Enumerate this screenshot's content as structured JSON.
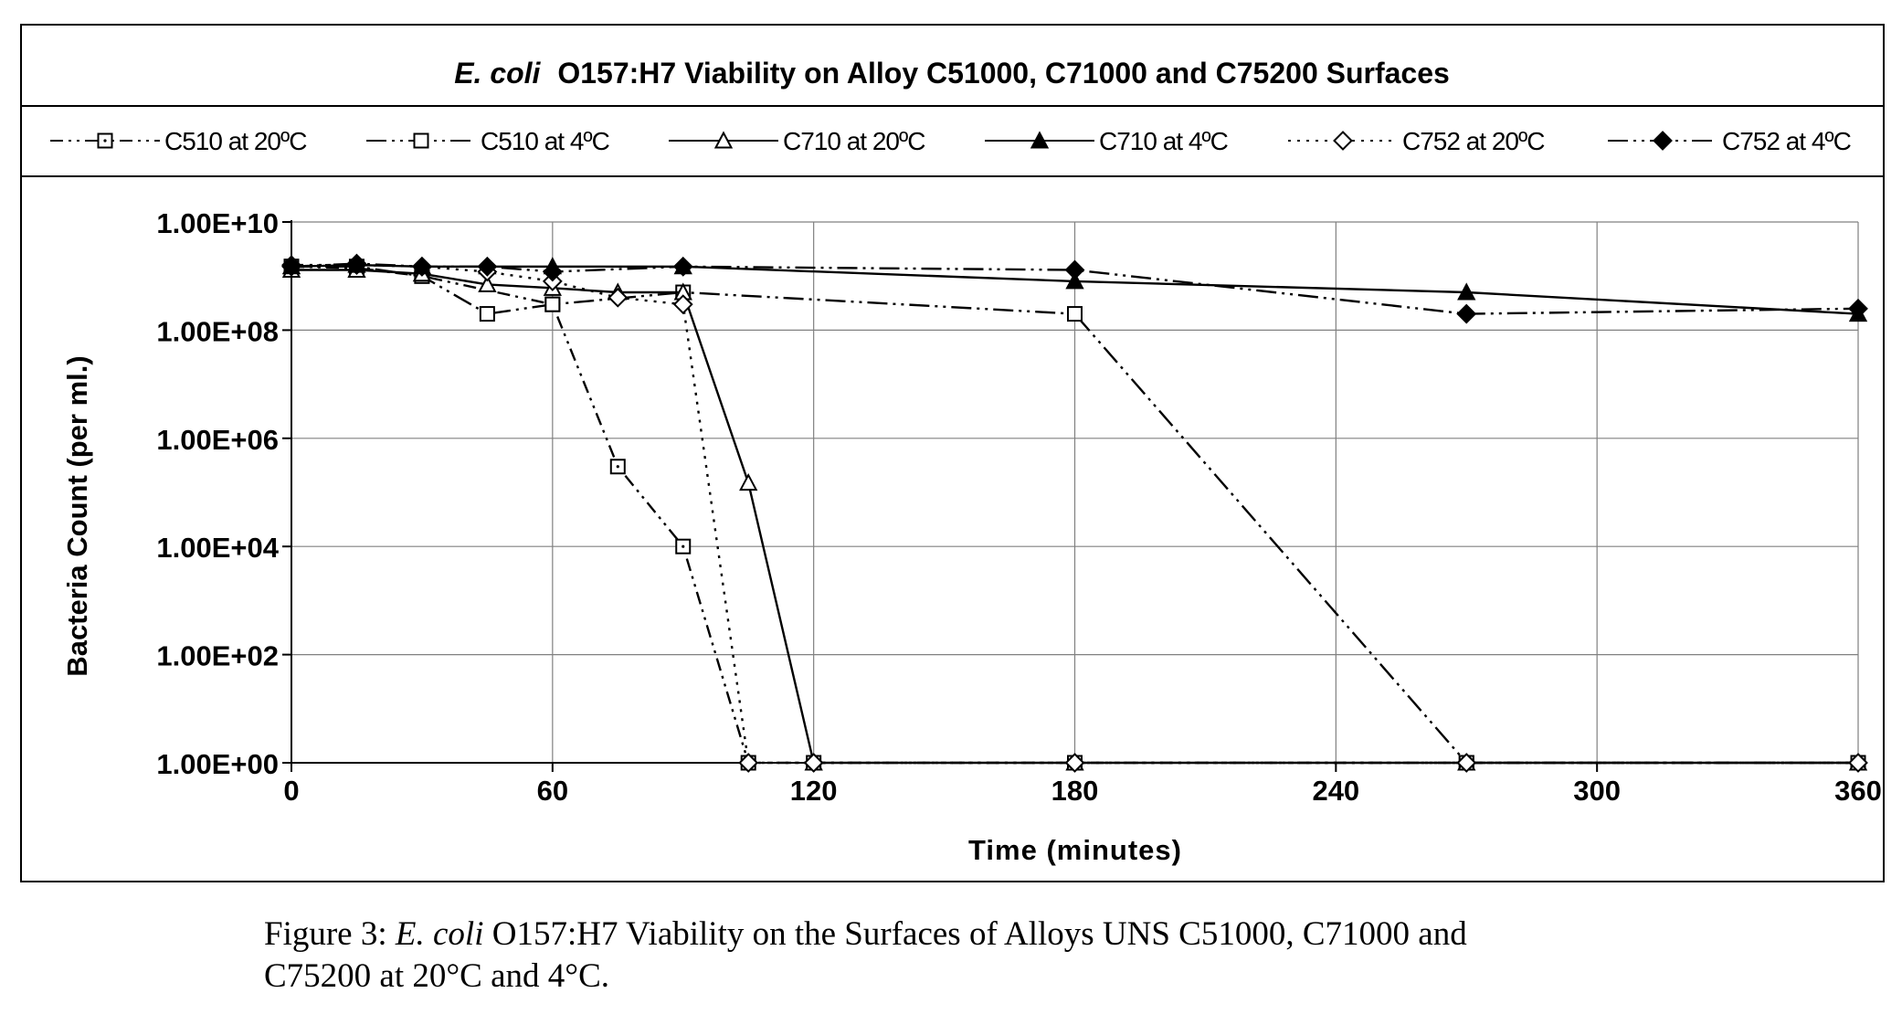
{
  "chart_data": {
    "type": "line",
    "title_italic": "E. coli",
    "title_rest": "O157:H7 Viability on Alloy C51000, C71000 and C75200 Surfaces",
    "xlabel": "Time (minutes)",
    "ylabel": "Bacteria Count (per ml.)",
    "x_ticks": [
      0,
      60,
      120,
      180,
      240,
      300,
      360
    ],
    "y_ticks": [
      "1.00E+00",
      "1.00E+02",
      "1.00E+04",
      "1.00E+06",
      "1.00E+08",
      "1.00E+10"
    ],
    "xlim": [
      0,
      360
    ],
    "ylim": [
      1,
      10000000000
    ],
    "y_scale": "log",
    "grid": true,
    "legend_position": "top",
    "series": [
      {
        "name": "C510 at 20ºC",
        "marker": "open-square-dot",
        "dash": "dash-dot-dot",
        "points": [
          [
            0,
            1500000000
          ],
          [
            15,
            1400000000
          ],
          [
            30,
            1000000000
          ],
          [
            60,
            300000000
          ],
          [
            75,
            300000
          ],
          [
            90,
            10000
          ],
          [
            105,
            1
          ],
          [
            120,
            1
          ],
          [
            180,
            1
          ],
          [
            270,
            1
          ],
          [
            360,
            1
          ]
        ]
      },
      {
        "name": "C510 at 4ºC",
        "marker": "open-square",
        "dash": "long-dash-dot-dot",
        "points": [
          [
            0,
            1500000000
          ],
          [
            15,
            1500000000
          ],
          [
            30,
            1000000000
          ],
          [
            45,
            200000000
          ],
          [
            60,
            300000000
          ],
          [
            90,
            500000000
          ],
          [
            180,
            200000000
          ],
          [
            270,
            1
          ],
          [
            360,
            1
          ]
        ]
      },
      {
        "name": "C710 at 20ºC",
        "marker": "open-triangle",
        "dash": "solid",
        "points": [
          [
            0,
            1300000000
          ],
          [
            15,
            1300000000
          ],
          [
            30,
            1100000000
          ],
          [
            45,
            700000000
          ],
          [
            60,
            600000000
          ],
          [
            75,
            500000000
          ],
          [
            90,
            500000000
          ],
          [
            105,
            150000
          ],
          [
            120,
            1
          ],
          [
            180,
            1
          ],
          [
            270,
            1
          ],
          [
            360,
            1
          ]
        ]
      },
      {
        "name": "C710 at 4ºC",
        "marker": "filled-triangle",
        "dash": "solid",
        "points": [
          [
            0,
            1500000000
          ],
          [
            15,
            1600000000
          ],
          [
            30,
            1500000000
          ],
          [
            45,
            1500000000
          ],
          [
            60,
            1500000000
          ],
          [
            90,
            1500000000
          ],
          [
            180,
            800000000
          ],
          [
            270,
            500000000
          ],
          [
            360,
            200000000
          ]
        ]
      },
      {
        "name": "C752 at 20ºC",
        "marker": "open-diamond",
        "dash": "dotted",
        "points": [
          [
            0,
            1600000000
          ],
          [
            15,
            1600000000
          ],
          [
            30,
            1500000000
          ],
          [
            45,
            1200000000
          ],
          [
            60,
            800000000
          ],
          [
            75,
            400000000
          ],
          [
            90,
            300000000
          ],
          [
            105,
            1
          ],
          [
            120,
            1
          ],
          [
            180,
            1
          ],
          [
            270,
            1
          ],
          [
            360,
            1
          ]
        ]
      },
      {
        "name": "C752 at 4ºC",
        "marker": "filled-diamond",
        "dash": "long-dash-dot-dot",
        "points": [
          [
            0,
            1500000000
          ],
          [
            15,
            1700000000
          ],
          [
            30,
            1500000000
          ],
          [
            45,
            1500000000
          ],
          [
            60,
            1200000000
          ],
          [
            90,
            1500000000
          ],
          [
            180,
            1300000000
          ],
          [
            270,
            200000000
          ],
          [
            360,
            250000000
          ]
        ]
      }
    ]
  },
  "caption": {
    "label": "Figure 3:",
    "italic": "E. coli",
    "text": "O157:H7 Viability on the Surfaces of Alloys UNS C51000, C71000 and",
    "line2": "C75200 at 20°C and 4°C."
  }
}
